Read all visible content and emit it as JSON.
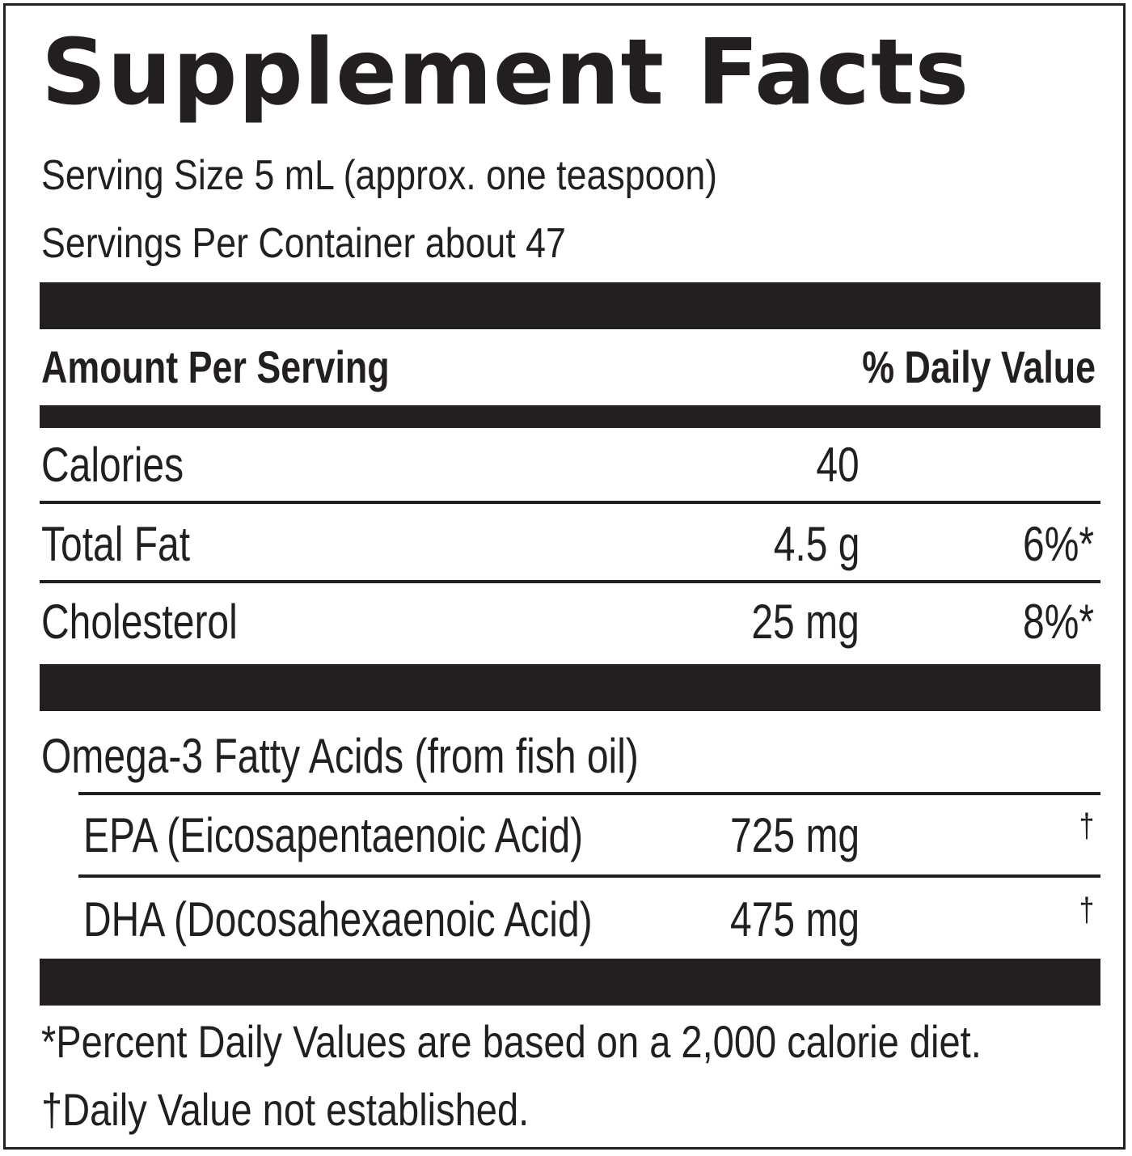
{
  "title": "Supplement Facts",
  "serving_size": "Serving Size 5 mL (approx. one teaspoon)",
  "servings_per_container": "Servings Per Container about 47",
  "header": {
    "amount_per_serving": "Amount Per Serving",
    "daily_value": "% Daily Value"
  },
  "rows": [
    {
      "name": "Calories",
      "amount": "40",
      "dv": ""
    },
    {
      "name": "Total Fat",
      "amount": "4.5 g",
      "dv": "6%*"
    },
    {
      "name": "Cholesterol",
      "amount": "25 mg",
      "dv": "8%*"
    }
  ],
  "omega": {
    "heading": "Omega-3 Fatty Acids (from fish oil)",
    "items": [
      {
        "name": "EPA (Eicosapentaenoic Acid)",
        "amount": "725 mg",
        "dv": "†"
      },
      {
        "name": "DHA (Docosahexaenoic Acid)",
        "amount": "475 mg",
        "dv": "†"
      }
    ]
  },
  "footnotes": {
    "percent_dv": "*Percent Daily Values are based on a 2,000 calorie diet.",
    "not_established": "†Daily Value not established."
  },
  "colors": {
    "ink": "#231f20",
    "background": "#ffffff"
  }
}
